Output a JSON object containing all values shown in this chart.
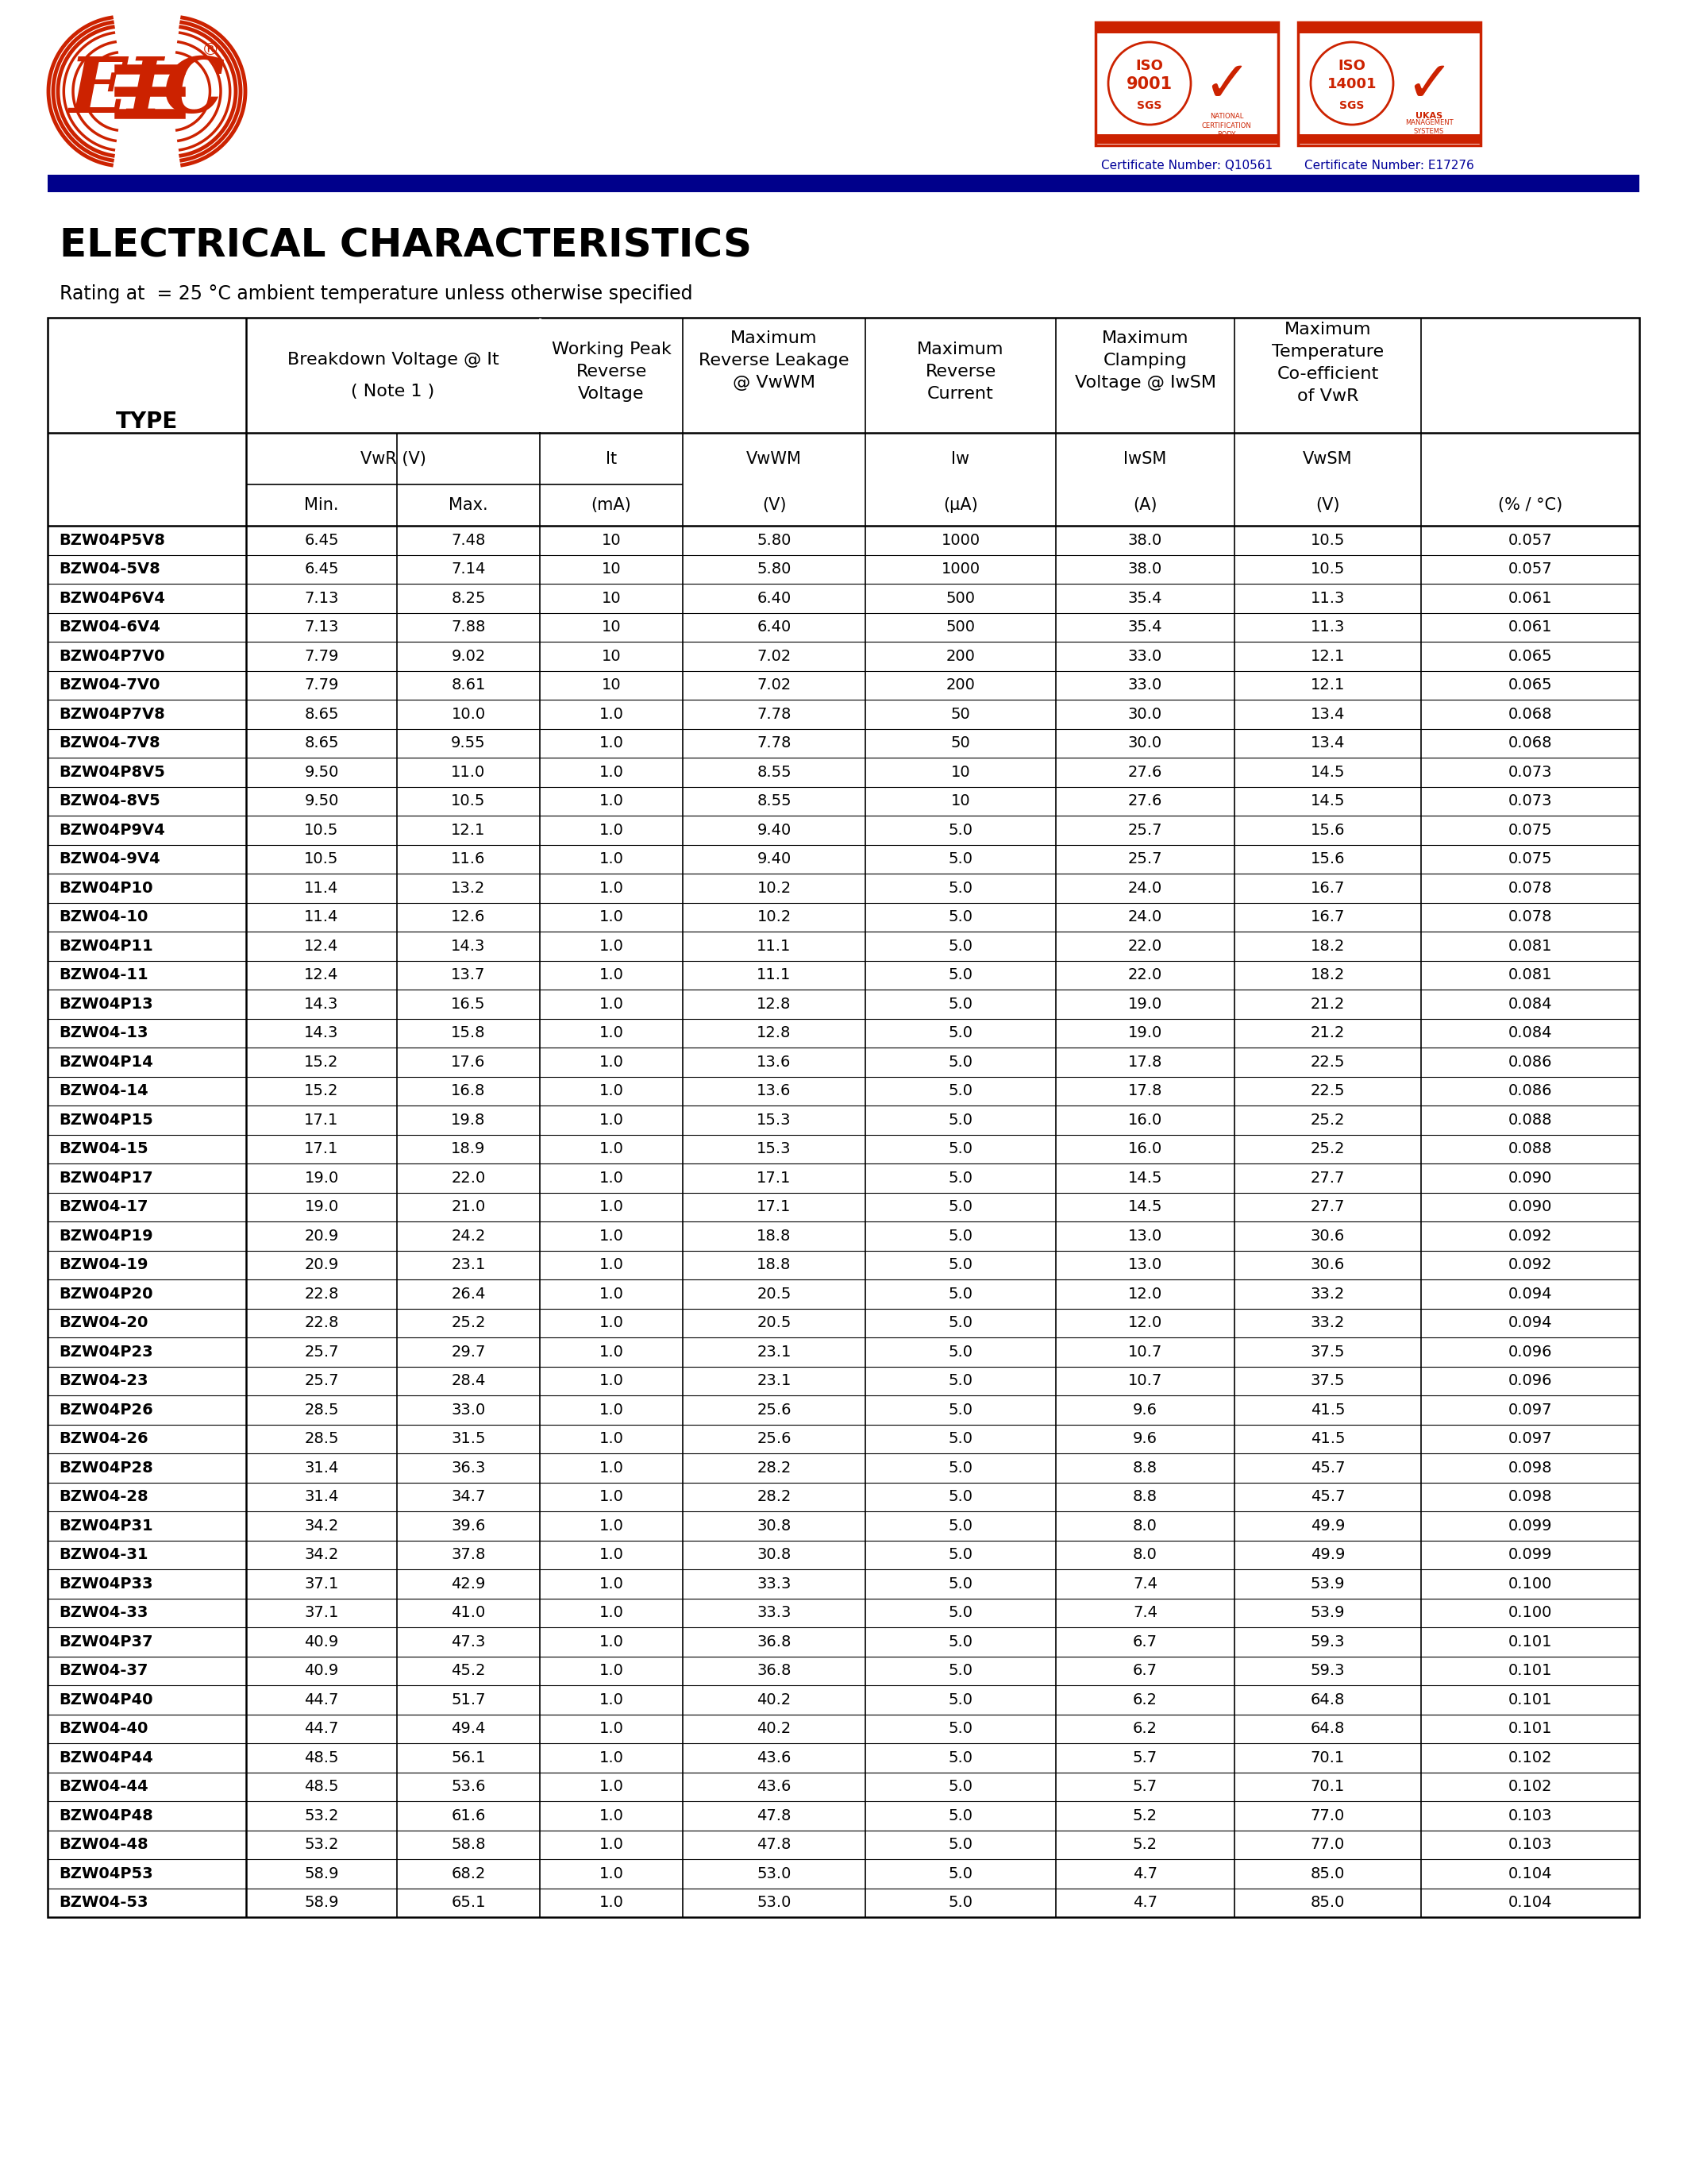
{
  "title": "ELECTRICAL CHARACTERISTICS",
  "subtitle": "Rating at  = 25 °C ambient temperature unless otherwise specified",
  "blue_bar_color": "#00008B",
  "page_bg": "#FFFFFF",
  "eic_logo_color": "#CC2200",
  "cert_border_color": "#CC2200",
  "cert_text_color": "#CC0000",
  "cert_num_color": "#000099",
  "table_data": [
    [
      "BZW04P5V8",
      "6.45",
      "7.48",
      "10",
      "5.80",
      "1000",
      "38.0",
      "10.5",
      "0.057"
    ],
    [
      "BZW04-5V8",
      "6.45",
      "7.14",
      "10",
      "5.80",
      "1000",
      "38.0",
      "10.5",
      "0.057"
    ],
    [
      "BZW04P6V4",
      "7.13",
      "8.25",
      "10",
      "6.40",
      "500",
      "35.4",
      "11.3",
      "0.061"
    ],
    [
      "BZW04-6V4",
      "7.13",
      "7.88",
      "10",
      "6.40",
      "500",
      "35.4",
      "11.3",
      "0.061"
    ],
    [
      "BZW04P7V0",
      "7.79",
      "9.02",
      "10",
      "7.02",
      "200",
      "33.0",
      "12.1",
      "0.065"
    ],
    [
      "BZW04-7V0",
      "7.79",
      "8.61",
      "10",
      "7.02",
      "200",
      "33.0",
      "12.1",
      "0.065"
    ],
    [
      "BZW04P7V8",
      "8.65",
      "10.0",
      "1.0",
      "7.78",
      "50",
      "30.0",
      "13.4",
      "0.068"
    ],
    [
      "BZW04-7V8",
      "8.65",
      "9.55",
      "1.0",
      "7.78",
      "50",
      "30.0",
      "13.4",
      "0.068"
    ],
    [
      "BZW04P8V5",
      "9.50",
      "11.0",
      "1.0",
      "8.55",
      "10",
      "27.6",
      "14.5",
      "0.073"
    ],
    [
      "BZW04-8V5",
      "9.50",
      "10.5",
      "1.0",
      "8.55",
      "10",
      "27.6",
      "14.5",
      "0.073"
    ],
    [
      "BZW04P9V4",
      "10.5",
      "12.1",
      "1.0",
      "9.40",
      "5.0",
      "25.7",
      "15.6",
      "0.075"
    ],
    [
      "BZW04-9V4",
      "10.5",
      "11.6",
      "1.0",
      "9.40",
      "5.0",
      "25.7",
      "15.6",
      "0.075"
    ],
    [
      "BZW04P10",
      "11.4",
      "13.2",
      "1.0",
      "10.2",
      "5.0",
      "24.0",
      "16.7",
      "0.078"
    ],
    [
      "BZW04-10",
      "11.4",
      "12.6",
      "1.0",
      "10.2",
      "5.0",
      "24.0",
      "16.7",
      "0.078"
    ],
    [
      "BZW04P11",
      "12.4",
      "14.3",
      "1.0",
      "11.1",
      "5.0",
      "22.0",
      "18.2",
      "0.081"
    ],
    [
      "BZW04-11",
      "12.4",
      "13.7",
      "1.0",
      "11.1",
      "5.0",
      "22.0",
      "18.2",
      "0.081"
    ],
    [
      "BZW04P13",
      "14.3",
      "16.5",
      "1.0",
      "12.8",
      "5.0",
      "19.0",
      "21.2",
      "0.084"
    ],
    [
      "BZW04-13",
      "14.3",
      "15.8",
      "1.0",
      "12.8",
      "5.0",
      "19.0",
      "21.2",
      "0.084"
    ],
    [
      "BZW04P14",
      "15.2",
      "17.6",
      "1.0",
      "13.6",
      "5.0",
      "17.8",
      "22.5",
      "0.086"
    ],
    [
      "BZW04-14",
      "15.2",
      "16.8",
      "1.0",
      "13.6",
      "5.0",
      "17.8",
      "22.5",
      "0.086"
    ],
    [
      "BZW04P15",
      "17.1",
      "19.8",
      "1.0",
      "15.3",
      "5.0",
      "16.0",
      "25.2",
      "0.088"
    ],
    [
      "BZW04-15",
      "17.1",
      "18.9",
      "1.0",
      "15.3",
      "5.0",
      "16.0",
      "25.2",
      "0.088"
    ],
    [
      "BZW04P17",
      "19.0",
      "22.0",
      "1.0",
      "17.1",
      "5.0",
      "14.5",
      "27.7",
      "0.090"
    ],
    [
      "BZW04-17",
      "19.0",
      "21.0",
      "1.0",
      "17.1",
      "5.0",
      "14.5",
      "27.7",
      "0.090"
    ],
    [
      "BZW04P19",
      "20.9",
      "24.2",
      "1.0",
      "18.8",
      "5.0",
      "13.0",
      "30.6",
      "0.092"
    ],
    [
      "BZW04-19",
      "20.9",
      "23.1",
      "1.0",
      "18.8",
      "5.0",
      "13.0",
      "30.6",
      "0.092"
    ],
    [
      "BZW04P20",
      "22.8",
      "26.4",
      "1.0",
      "20.5",
      "5.0",
      "12.0",
      "33.2",
      "0.094"
    ],
    [
      "BZW04-20",
      "22.8",
      "25.2",
      "1.0",
      "20.5",
      "5.0",
      "12.0",
      "33.2",
      "0.094"
    ],
    [
      "BZW04P23",
      "25.7",
      "29.7",
      "1.0",
      "23.1",
      "5.0",
      "10.7",
      "37.5",
      "0.096"
    ],
    [
      "BZW04-23",
      "25.7",
      "28.4",
      "1.0",
      "23.1",
      "5.0",
      "10.7",
      "37.5",
      "0.096"
    ],
    [
      "BZW04P26",
      "28.5",
      "33.0",
      "1.0",
      "25.6",
      "5.0",
      "9.6",
      "41.5",
      "0.097"
    ],
    [
      "BZW04-26",
      "28.5",
      "31.5",
      "1.0",
      "25.6",
      "5.0",
      "9.6",
      "41.5",
      "0.097"
    ],
    [
      "BZW04P28",
      "31.4",
      "36.3",
      "1.0",
      "28.2",
      "5.0",
      "8.8",
      "45.7",
      "0.098"
    ],
    [
      "BZW04-28",
      "31.4",
      "34.7",
      "1.0",
      "28.2",
      "5.0",
      "8.8",
      "45.7",
      "0.098"
    ],
    [
      "BZW04P31",
      "34.2",
      "39.6",
      "1.0",
      "30.8",
      "5.0",
      "8.0",
      "49.9",
      "0.099"
    ],
    [
      "BZW04-31",
      "34.2",
      "37.8",
      "1.0",
      "30.8",
      "5.0",
      "8.0",
      "49.9",
      "0.099"
    ],
    [
      "BZW04P33",
      "37.1",
      "42.9",
      "1.0",
      "33.3",
      "5.0",
      "7.4",
      "53.9",
      "0.100"
    ],
    [
      "BZW04-33",
      "37.1",
      "41.0",
      "1.0",
      "33.3",
      "5.0",
      "7.4",
      "53.9",
      "0.100"
    ],
    [
      "BZW04P37",
      "40.9",
      "47.3",
      "1.0",
      "36.8",
      "5.0",
      "6.7",
      "59.3",
      "0.101"
    ],
    [
      "BZW04-37",
      "40.9",
      "45.2",
      "1.0",
      "36.8",
      "5.0",
      "6.7",
      "59.3",
      "0.101"
    ],
    [
      "BZW04P40",
      "44.7",
      "51.7",
      "1.0",
      "40.2",
      "5.0",
      "6.2",
      "64.8",
      "0.101"
    ],
    [
      "BZW04-40",
      "44.7",
      "49.4",
      "1.0",
      "40.2",
      "5.0",
      "6.2",
      "64.8",
      "0.101"
    ],
    [
      "BZW04P44",
      "48.5",
      "56.1",
      "1.0",
      "43.6",
      "5.0",
      "5.7",
      "70.1",
      "0.102"
    ],
    [
      "BZW04-44",
      "48.5",
      "53.6",
      "1.0",
      "43.6",
      "5.0",
      "5.7",
      "70.1",
      "0.102"
    ],
    [
      "BZW04P48",
      "53.2",
      "61.6",
      "1.0",
      "47.8",
      "5.0",
      "5.2",
      "77.0",
      "0.103"
    ],
    [
      "BZW04-48",
      "53.2",
      "58.8",
      "1.0",
      "47.8",
      "5.0",
      "5.2",
      "77.0",
      "0.103"
    ],
    [
      "BZW04P53",
      "58.9",
      "68.2",
      "1.0",
      "53.0",
      "5.0",
      "4.7",
      "85.0",
      "0.104"
    ],
    [
      "BZW04-53",
      "58.9",
      "65.1",
      "1.0",
      "53.0",
      "5.0",
      "4.7",
      "85.0",
      "0.104"
    ]
  ]
}
